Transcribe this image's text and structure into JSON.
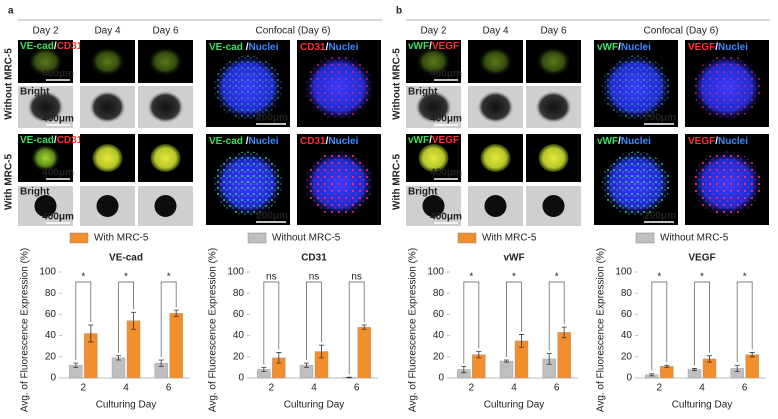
{
  "panels": [
    {
      "label": "a",
      "headers": [
        "Day 2",
        "Day 4",
        "Day 6",
        "Confocal (Day 6)"
      ],
      "row_labels": [
        "Without MRC-5",
        "With MRC-5"
      ],
      "fluor_label": [
        "VE-cad",
        "/",
        "CD31"
      ],
      "confocal_labels": [
        [
          "VE-cad ",
          "/",
          "Nuclei"
        ],
        [
          "CD31",
          "/",
          "Nuclei"
        ]
      ],
      "bright_label": "Bright",
      "small_scale": "400μm",
      "confocal_scale": "200μm",
      "legend": [
        {
          "name": "With MRC-5",
          "color": "#f28e2b"
        },
        {
          "name": "Without MRC-5",
          "color": "#bfbfbf"
        }
      ]
    },
    {
      "label": "b",
      "headers": [
        "Day 2",
        "Day 4",
        "Day 6",
        "Confocal (Day 6)"
      ],
      "row_labels": [
        "Without MRC-5",
        "With MRC-5"
      ],
      "fluor_label": [
        "vWF",
        "/",
        "VEGF"
      ],
      "confocal_labels": [
        [
          "vWF",
          "/",
          "Nuclei"
        ],
        [
          "VEGF",
          "/",
          "Nuclei"
        ]
      ],
      "bright_label": "Bright",
      "small_scale": "400μm",
      "confocal_scale": "200μm",
      "legend": [
        {
          "name": "With MRC-5",
          "color": "#f28e2b"
        },
        {
          "name": "Without MRC-5",
          "color": "#bfbfbf"
        }
      ]
    }
  ],
  "chart_data": [
    {
      "type": "bar",
      "title": "VE-cad",
      "xlabel": "Culturing Day",
      "ylabel": "Avg. of Fluorescence Expression (%)",
      "categories": [
        "2",
        "4",
        "6"
      ],
      "ylim": [
        0,
        100
      ],
      "yticks": [
        0,
        20,
        40,
        60,
        80,
        100
      ],
      "series": [
        {
          "color": "#bfbfbf",
          "values": [
            12,
            19,
            14
          ],
          "errors": [
            2,
            2,
            3
          ]
        },
        {
          "color": "#f28e2b",
          "values": [
            42,
            54,
            61
          ],
          "errors": [
            8,
            8,
            3
          ]
        }
      ],
      "annotations": [
        "*",
        "*",
        "*"
      ]
    },
    {
      "type": "bar",
      "title": "CD31",
      "xlabel": "Culturing Day",
      "ylabel": "Avg. of Fluorescence Expression (%)",
      "categories": [
        "2",
        "4",
        "6"
      ],
      "ylim": [
        0,
        100
      ],
      "yticks": [
        0,
        20,
        40,
        60,
        80,
        100
      ],
      "series": [
        {
          "color": "#bfbfbf",
          "values": [
            8,
            12,
            0.5
          ],
          "errors": [
            2,
            2,
            0.3
          ]
        },
        {
          "color": "#f28e2b",
          "values": [
            19,
            25,
            48
          ],
          "errors": [
            5,
            6,
            2
          ]
        }
      ],
      "annotations": [
        "ns",
        "ns",
        "ns"
      ]
    },
    {
      "type": "bar",
      "title": "vWF",
      "xlabel": "Culturing Day",
      "ylabel": "Avg. of Fluorescence Expression (%)",
      "categories": [
        "2",
        "4",
        "6"
      ],
      "ylim": [
        0,
        100
      ],
      "yticks": [
        0,
        20,
        40,
        60,
        80,
        100
      ],
      "series": [
        {
          "color": "#bfbfbf",
          "values": [
            8,
            16,
            18
          ],
          "errors": [
            3,
            1,
            5
          ]
        },
        {
          "color": "#f28e2b",
          "values": [
            22,
            35,
            43
          ],
          "errors": [
            3,
            6,
            5
          ]
        }
      ],
      "annotations": [
        "*",
        "*",
        "*"
      ]
    },
    {
      "type": "bar",
      "title": "VEGF",
      "xlabel": "Culturing Day",
      "ylabel": "Avg. of Fluorescence Expression (%)",
      "categories": [
        "2",
        "4",
        "6"
      ],
      "ylim": [
        0,
        100
      ],
      "yticks": [
        0,
        20,
        40,
        60,
        80,
        100
      ],
      "series": [
        {
          "color": "#bfbfbf",
          "values": [
            3,
            8,
            9
          ],
          "errors": [
            1,
            1,
            3
          ]
        },
        {
          "color": "#f28e2b",
          "values": [
            11,
            18,
            22
          ],
          "errors": [
            1,
            3,
            2
          ]
        }
      ],
      "annotations": [
        "*",
        "*",
        "*"
      ]
    }
  ]
}
